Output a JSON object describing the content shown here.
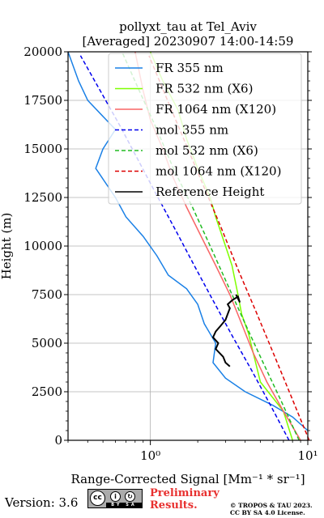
{
  "chart_data": {
    "type": "line",
    "title": "pollyxt_tau at Tel_Aviv",
    "subtitle": "[Averaged] 20230907 14:00-14:59",
    "xlabel": "Range-Corrected Signal [Mm⁻¹ * sr⁻¹]",
    "ylabel": "Height (m)",
    "xscale": "log",
    "xlim": [
      0.3,
      10
    ],
    "ylim": [
      0,
      20000
    ],
    "x_ticks": [
      {
        "value": 1,
        "label": "10⁰"
      },
      {
        "value": 10,
        "label": "10¹"
      }
    ],
    "y_ticks": [
      0,
      2500,
      5000,
      7500,
      10000,
      12500,
      15000,
      17500,
      20000
    ],
    "y_tick_labels": [
      "0",
      "2500",
      "5000",
      "7500",
      "10000",
      "12500",
      "15000",
      "17500",
      "20000"
    ],
    "grid": true,
    "legend_position": "top-right",
    "series": [
      {
        "name": "FR 355 nm",
        "color": "#1a80e6",
        "style": "solid",
        "x": [
          10,
          8,
          6,
          4,
          3,
          2.5,
          2.6,
          2.2,
          2.0,
          1.7,
          1.3,
          1.1,
          0.9,
          0.7,
          0.6,
          0.45,
          0.5,
          0.6,
          0.4,
          0.35,
          0.3
        ],
        "y": [
          500,
          1200,
          1800,
          2500,
          3200,
          4000,
          5000,
          6000,
          7000,
          7800,
          8500,
          9500,
          10500,
          11500,
          12500,
          14000,
          15000,
          16000,
          17500,
          18500,
          20000
        ]
      },
      {
        "name": "FR 532 nm (X6)",
        "color": "#7fff00",
        "style": "solid",
        "x": [
          8,
          7,
          5,
          4.5,
          4.2,
          3.8,
          3.6,
          3.3,
          3.0,
          2.6,
          2.4,
          2.0,
          1.7,
          1.5,
          1.2,
          1.0
        ],
        "y": [
          0,
          1500,
          3000,
          4500,
          5500,
          6500,
          7500,
          9000,
          10000,
          11500,
          12500,
          14000,
          15500,
          17000,
          18500,
          20000
        ]
      },
      {
        "name": "FR 1064 nm (X120)",
        "color": "#f86565",
        "style": "solid",
        "x": [
          9,
          7,
          5.5,
          4.5,
          3.8,
          3.2,
          2.6,
          2.1,
          1.7,
          1.4,
          1.2,
          1.0,
          0.9,
          0.8
        ],
        "y": [
          0,
          1500,
          3000,
          4500,
          6000,
          7500,
          9000,
          10500,
          12000,
          13500,
          15000,
          16500,
          18000,
          20000
        ]
      },
      {
        "name": "mol 355 nm",
        "color": "#0000ee",
        "style": "dashed",
        "x": [
          7.6,
          5.8,
          4.4,
          3.3,
          2.5,
          1.9,
          1.45,
          1.1,
          0.84,
          0.64,
          0.48,
          0.36
        ],
        "y": [
          0,
          1800,
          3600,
          5400,
          7200,
          9000,
          10800,
          12600,
          14400,
          16200,
          18000,
          19800
        ]
      },
      {
        "name": "mol 532 nm (X6)",
        "color": "#22bb22",
        "style": "dashed",
        "x": [
          8.8,
          6.8,
          5.2,
          4.0,
          3.1,
          2.4,
          1.85,
          1.4,
          1.1,
          0.85,
          0.66
        ],
        "y": [
          0,
          2000,
          4000,
          6000,
          8000,
          10000,
          12000,
          14000,
          16000,
          18000,
          20000
        ]
      },
      {
        "name": "mol 1064 nm (X120)",
        "color": "#dd0000",
        "style": "dashed",
        "x": [
          10.2,
          7.9,
          6.1,
          4.7,
          3.6,
          2.8,
          2.15,
          1.65,
          1.27,
          0.98
        ],
        "y": [
          0,
          2200,
          4400,
          6600,
          8800,
          11000,
          13200,
          15400,
          17600,
          19800
        ]
      },
      {
        "name": "Reference Height",
        "color": "#000000",
        "style": "solid",
        "x": [
          3.2,
          3.0,
          2.9,
          2.6,
          2.7,
          2.5,
          2.6,
          2.8,
          3.0,
          3.1,
          3.2,
          3.1,
          3.3,
          3.6,
          3.7,
          3.5
        ],
        "y": [
          3800,
          4000,
          4300,
          4700,
          5000,
          5300,
          5600,
          5900,
          6200,
          6500,
          6800,
          7000,
          7200,
          7400,
          7100,
          7500
        ]
      }
    ]
  },
  "footer": {
    "version_label": "Version: 3.6",
    "badge_cc": "cc",
    "badge_by": "BY",
    "badge_sa": "SA",
    "preliminary_line1": "Preliminary",
    "preliminary_line2": "Results.",
    "copyright_line1": "© TROPOS & TAU 2023.",
    "copyright_line2": "CC BY SA 4.0 License."
  }
}
